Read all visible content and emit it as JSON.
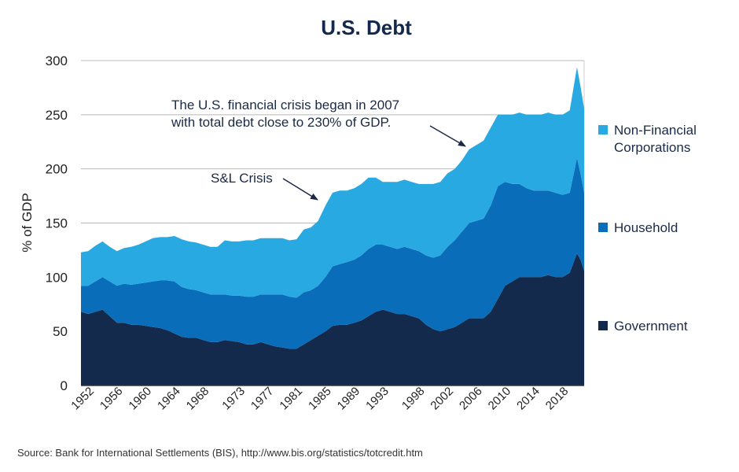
{
  "chart_data": {
    "type": "area",
    "title": "U.S. Debt",
    "ylabel": "% of GDP",
    "xlabel": "",
    "ylim": [
      0,
      300
    ],
    "yticks": [
      0,
      50,
      100,
      150,
      200,
      250,
      300
    ],
    "xlim": [
      1951,
      2021
    ],
    "xtick_labels": [
      "1952",
      "1956",
      "1960",
      "1964",
      "1968",
      "1973",
      "1977",
      "1981",
      "1985",
      "1989",
      "1993",
      "1998",
      "2002",
      "2006",
      "2010",
      "2014",
      "2018"
    ],
    "stacked": true,
    "grid": "horizontal",
    "legend_placement": "right",
    "x": [
      1951,
      1952,
      1953,
      1954,
      1955,
      1956,
      1957,
      1958,
      1959,
      1960,
      1961,
      1962,
      1963,
      1964,
      1965,
      1966,
      1967,
      1968,
      1969,
      1970,
      1971,
      1972,
      1973,
      1974,
      1975,
      1976,
      1977,
      1978,
      1979,
      1980,
      1981,
      1982,
      1983,
      1984,
      1985,
      1986,
      1987,
      1988,
      1989,
      1990,
      1991,
      1992,
      1993,
      1994,
      1995,
      1996,
      1997,
      1998,
      1999,
      2000,
      2001,
      2002,
      2003,
      2004,
      2005,
      2006,
      2007,
      2008,
      2009,
      2010,
      2011,
      2012,
      2013,
      2014,
      2015,
      2016,
      2017,
      2018,
      2019,
      2020,
      2020.5,
      2021
    ],
    "series": [
      {
        "name": "Government",
        "color": "#132a4c",
        "values": [
          68,
          66,
          68,
          70,
          64,
          58,
          58,
          56,
          56,
          55,
          54,
          53,
          51,
          48,
          45,
          44,
          44,
          42,
          40,
          40,
          42,
          41,
          40,
          38,
          38,
          40,
          38,
          36,
          35,
          34,
          34,
          38,
          42,
          46,
          50,
          55,
          56,
          56,
          58,
          60,
          64,
          68,
          70,
          68,
          66,
          66,
          64,
          62,
          56,
          52,
          50,
          52,
          54,
          58,
          62,
          62,
          62,
          68,
          80,
          92,
          96,
          100,
          100,
          100,
          100,
          102,
          100,
          100,
          104,
          122,
          116,
          106
        ]
      },
      {
        "name": "Household",
        "color": "#0a6db9",
        "values": [
          24,
          26,
          28,
          30,
          32,
          34,
          36,
          37,
          38,
          40,
          42,
          44,
          46,
          48,
          46,
          45,
          44,
          44,
          44,
          44,
          42,
          42,
          43,
          44,
          44,
          44,
          46,
          48,
          49,
          48,
          47,
          48,
          46,
          46,
          50,
          55,
          56,
          58,
          58,
          60,
          62,
          62,
          60,
          60,
          60,
          62,
          62,
          62,
          64,
          66,
          70,
          76,
          80,
          84,
          88,
          90,
          92,
          98,
          104,
          96,
          90,
          86,
          82,
          80,
          80,
          78,
          78,
          76,
          74,
          88,
          80,
          72
        ]
      },
      {
        "name": "Non-Financial Corporations",
        "color": "#29a9e1",
        "values": [
          31,
          32,
          33,
          33,
          32,
          32,
          33,
          35,
          36,
          38,
          40,
          40,
          40,
          42,
          44,
          44,
          44,
          44,
          44,
          44,
          50,
          50,
          50,
          52,
          52,
          52,
          52,
          52,
          52,
          52,
          54,
          58,
          58,
          60,
          66,
          68,
          68,
          66,
          66,
          66,
          66,
          62,
          58,
          60,
          62,
          62,
          62,
          62,
          66,
          68,
          68,
          68,
          66,
          66,
          68,
          70,
          72,
          72,
          66,
          62,
          64,
          66,
          68,
          70,
          70,
          72,
          72,
          74,
          76,
          84,
          80,
          78
        ]
      }
    ],
    "annotations": [
      {
        "lines": [
          "The U.S. financial crisis began in 2007",
          "with total debt close to 230% of GDP."
        ]
      },
      {
        "lines": [
          "S&L Crisis"
        ]
      }
    ]
  },
  "source": "Source: Bank for International Settlements (BIS), http://www.bis.org/statistics/totcredit.htm"
}
